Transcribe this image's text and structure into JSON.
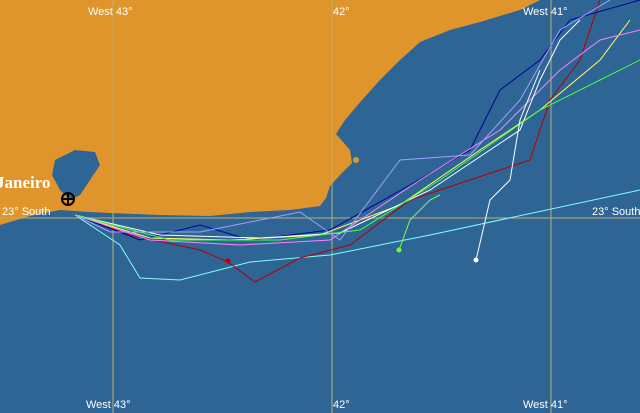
{
  "labels": {
    "top": [
      "West 43°",
      "42°",
      "West 41°"
    ],
    "bottom": [
      "West 43°",
      "42°",
      "West 41°"
    ],
    "left": "23° South",
    "right": "23° South",
    "city": "Janeiro"
  }
}
